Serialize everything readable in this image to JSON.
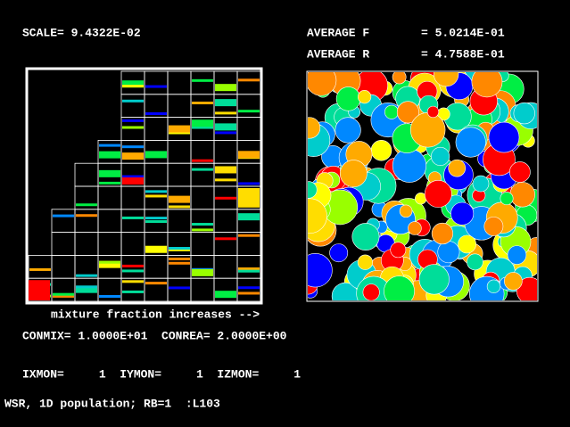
{
  "header": {
    "scale": "SCALE= 9.4322E-02",
    "average_f_label": "AVERAGE F",
    "average_f_value": "= 5.0214E-01",
    "average_r_label": "AVERAGE R",
    "average_r_value": "= 4.7588E-01"
  },
  "left_panel": {
    "caption": "mixture fraction increases -->"
  },
  "parameters": {
    "constants": "CONMIX= 1.0000E+01  CONREA= 2.0000E+00",
    "monitors": "IXMON=     1  IYMON=     1  IZMON=     1"
  },
  "status": "WSR, 1D population; RB=1  :L103"
}
